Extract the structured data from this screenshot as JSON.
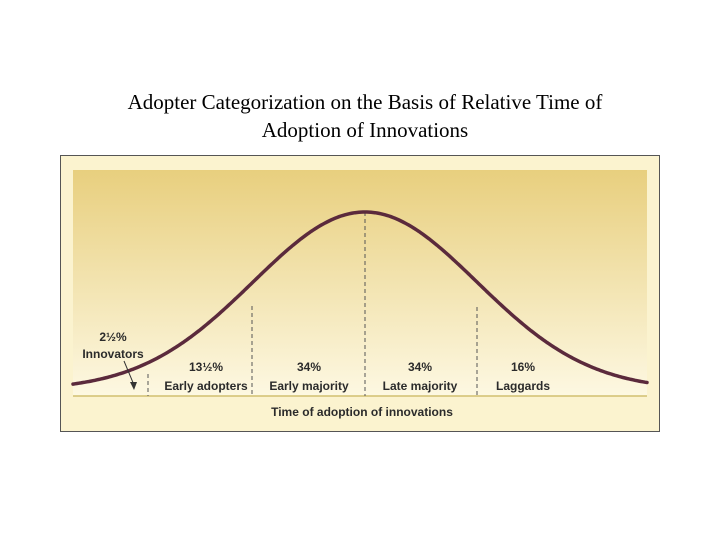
{
  "title_line1": "Adopter Categorization on the Basis of Relative Time of",
  "title_line2": "Adoption of Innovations",
  "diagram": {
    "axis_label": "Time of adoption of innovations",
    "categories": [
      {
        "id": "innovators",
        "percent": "2½%",
        "name": "Innovators"
      },
      {
        "id": "early-adopters",
        "percent": "13½%",
        "name": "Early adopters"
      },
      {
        "id": "early-majority",
        "percent": "34%",
        "name": "Early majority"
      },
      {
        "id": "late-majority",
        "percent": "34%",
        "name": "Late majority"
      },
      {
        "id": "laggards",
        "percent": "16%",
        "name": "Laggards"
      }
    ],
    "colors": {
      "curve": "#5b2a3c",
      "background_top": "#e8cf7e",
      "background_bottom": "#fdf8e2",
      "baseline": "#d2c070",
      "frame_bg": "#fbf3cf"
    }
  }
}
